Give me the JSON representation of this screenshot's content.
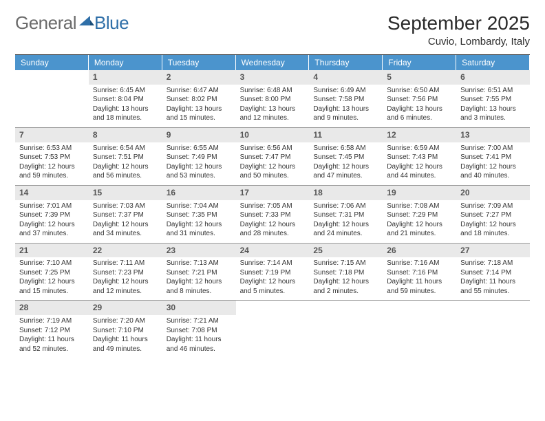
{
  "logo": {
    "general": "General",
    "blue": "Blue"
  },
  "title": "September 2025",
  "location": "Cuvio, Lombardy, Italy",
  "colors": {
    "header_bg": "#4b94cd",
    "header_text": "#ffffff",
    "daynum_bg": "#e9e9e9",
    "border": "#999999",
    "top_border": "#333333",
    "logo_gray": "#6b6b6b",
    "logo_blue": "#2f6fa8"
  },
  "daynames": [
    "Sunday",
    "Monday",
    "Tuesday",
    "Wednesday",
    "Thursday",
    "Friday",
    "Saturday"
  ],
  "weeks": [
    [
      null,
      {
        "n": "1",
        "sr": "Sunrise: 6:45 AM",
        "ss": "Sunset: 8:04 PM",
        "dl": "Daylight: 13 hours and 18 minutes."
      },
      {
        "n": "2",
        "sr": "Sunrise: 6:47 AM",
        "ss": "Sunset: 8:02 PM",
        "dl": "Daylight: 13 hours and 15 minutes."
      },
      {
        "n": "3",
        "sr": "Sunrise: 6:48 AM",
        "ss": "Sunset: 8:00 PM",
        "dl": "Daylight: 13 hours and 12 minutes."
      },
      {
        "n": "4",
        "sr": "Sunrise: 6:49 AM",
        "ss": "Sunset: 7:58 PM",
        "dl": "Daylight: 13 hours and 9 minutes."
      },
      {
        "n": "5",
        "sr": "Sunrise: 6:50 AM",
        "ss": "Sunset: 7:56 PM",
        "dl": "Daylight: 13 hours and 6 minutes."
      },
      {
        "n": "6",
        "sr": "Sunrise: 6:51 AM",
        "ss": "Sunset: 7:55 PM",
        "dl": "Daylight: 13 hours and 3 minutes."
      }
    ],
    [
      {
        "n": "7",
        "sr": "Sunrise: 6:53 AM",
        "ss": "Sunset: 7:53 PM",
        "dl": "Daylight: 12 hours and 59 minutes."
      },
      {
        "n": "8",
        "sr": "Sunrise: 6:54 AM",
        "ss": "Sunset: 7:51 PM",
        "dl": "Daylight: 12 hours and 56 minutes."
      },
      {
        "n": "9",
        "sr": "Sunrise: 6:55 AM",
        "ss": "Sunset: 7:49 PM",
        "dl": "Daylight: 12 hours and 53 minutes."
      },
      {
        "n": "10",
        "sr": "Sunrise: 6:56 AM",
        "ss": "Sunset: 7:47 PM",
        "dl": "Daylight: 12 hours and 50 minutes."
      },
      {
        "n": "11",
        "sr": "Sunrise: 6:58 AM",
        "ss": "Sunset: 7:45 PM",
        "dl": "Daylight: 12 hours and 47 minutes."
      },
      {
        "n": "12",
        "sr": "Sunrise: 6:59 AM",
        "ss": "Sunset: 7:43 PM",
        "dl": "Daylight: 12 hours and 44 minutes."
      },
      {
        "n": "13",
        "sr": "Sunrise: 7:00 AM",
        "ss": "Sunset: 7:41 PM",
        "dl": "Daylight: 12 hours and 40 minutes."
      }
    ],
    [
      {
        "n": "14",
        "sr": "Sunrise: 7:01 AM",
        "ss": "Sunset: 7:39 PM",
        "dl": "Daylight: 12 hours and 37 minutes."
      },
      {
        "n": "15",
        "sr": "Sunrise: 7:03 AM",
        "ss": "Sunset: 7:37 PM",
        "dl": "Daylight: 12 hours and 34 minutes."
      },
      {
        "n": "16",
        "sr": "Sunrise: 7:04 AM",
        "ss": "Sunset: 7:35 PM",
        "dl": "Daylight: 12 hours and 31 minutes."
      },
      {
        "n": "17",
        "sr": "Sunrise: 7:05 AM",
        "ss": "Sunset: 7:33 PM",
        "dl": "Daylight: 12 hours and 28 minutes."
      },
      {
        "n": "18",
        "sr": "Sunrise: 7:06 AM",
        "ss": "Sunset: 7:31 PM",
        "dl": "Daylight: 12 hours and 24 minutes."
      },
      {
        "n": "19",
        "sr": "Sunrise: 7:08 AM",
        "ss": "Sunset: 7:29 PM",
        "dl": "Daylight: 12 hours and 21 minutes."
      },
      {
        "n": "20",
        "sr": "Sunrise: 7:09 AM",
        "ss": "Sunset: 7:27 PM",
        "dl": "Daylight: 12 hours and 18 minutes."
      }
    ],
    [
      {
        "n": "21",
        "sr": "Sunrise: 7:10 AM",
        "ss": "Sunset: 7:25 PM",
        "dl": "Daylight: 12 hours and 15 minutes."
      },
      {
        "n": "22",
        "sr": "Sunrise: 7:11 AM",
        "ss": "Sunset: 7:23 PM",
        "dl": "Daylight: 12 hours and 12 minutes."
      },
      {
        "n": "23",
        "sr": "Sunrise: 7:13 AM",
        "ss": "Sunset: 7:21 PM",
        "dl": "Daylight: 12 hours and 8 minutes."
      },
      {
        "n": "24",
        "sr": "Sunrise: 7:14 AM",
        "ss": "Sunset: 7:19 PM",
        "dl": "Daylight: 12 hours and 5 minutes."
      },
      {
        "n": "25",
        "sr": "Sunrise: 7:15 AM",
        "ss": "Sunset: 7:18 PM",
        "dl": "Daylight: 12 hours and 2 minutes."
      },
      {
        "n": "26",
        "sr": "Sunrise: 7:16 AM",
        "ss": "Sunset: 7:16 PM",
        "dl": "Daylight: 11 hours and 59 minutes."
      },
      {
        "n": "27",
        "sr": "Sunrise: 7:18 AM",
        "ss": "Sunset: 7:14 PM",
        "dl": "Daylight: 11 hours and 55 minutes."
      }
    ],
    [
      {
        "n": "28",
        "sr": "Sunrise: 7:19 AM",
        "ss": "Sunset: 7:12 PM",
        "dl": "Daylight: 11 hours and 52 minutes."
      },
      {
        "n": "29",
        "sr": "Sunrise: 7:20 AM",
        "ss": "Sunset: 7:10 PM",
        "dl": "Daylight: 11 hours and 49 minutes."
      },
      {
        "n": "30",
        "sr": "Sunrise: 7:21 AM",
        "ss": "Sunset: 7:08 PM",
        "dl": "Daylight: 11 hours and 46 minutes."
      },
      null,
      null,
      null,
      null
    ]
  ]
}
